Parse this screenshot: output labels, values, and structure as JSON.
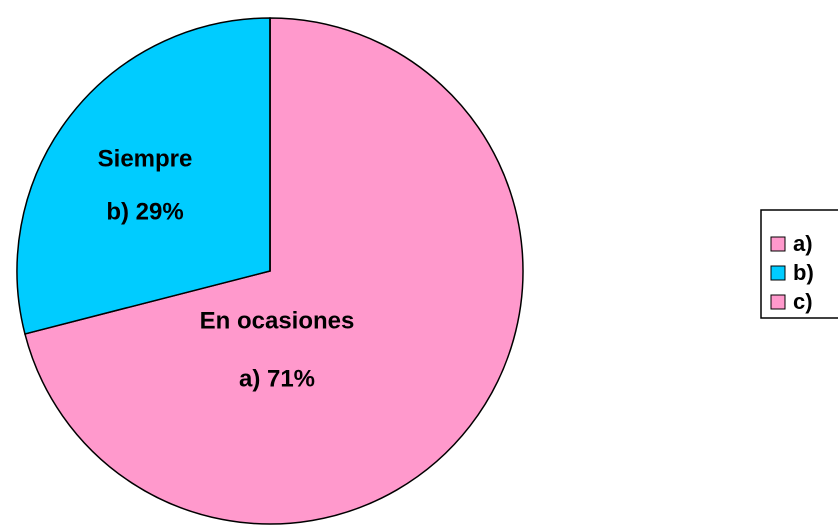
{
  "chart_data": {
    "type": "pie",
    "categories": [
      "a)",
      "b)",
      "c)"
    ],
    "values": [
      71,
      29,
      0
    ],
    "value_labels": [
      "a) 71%",
      "b) 29%",
      null
    ],
    "slice_names": [
      "En ocasiones",
      "Siempre",
      null
    ],
    "colors": [
      "#ff99cc",
      "#00ccff",
      "#ff99cc"
    ],
    "legend": "right"
  }
}
